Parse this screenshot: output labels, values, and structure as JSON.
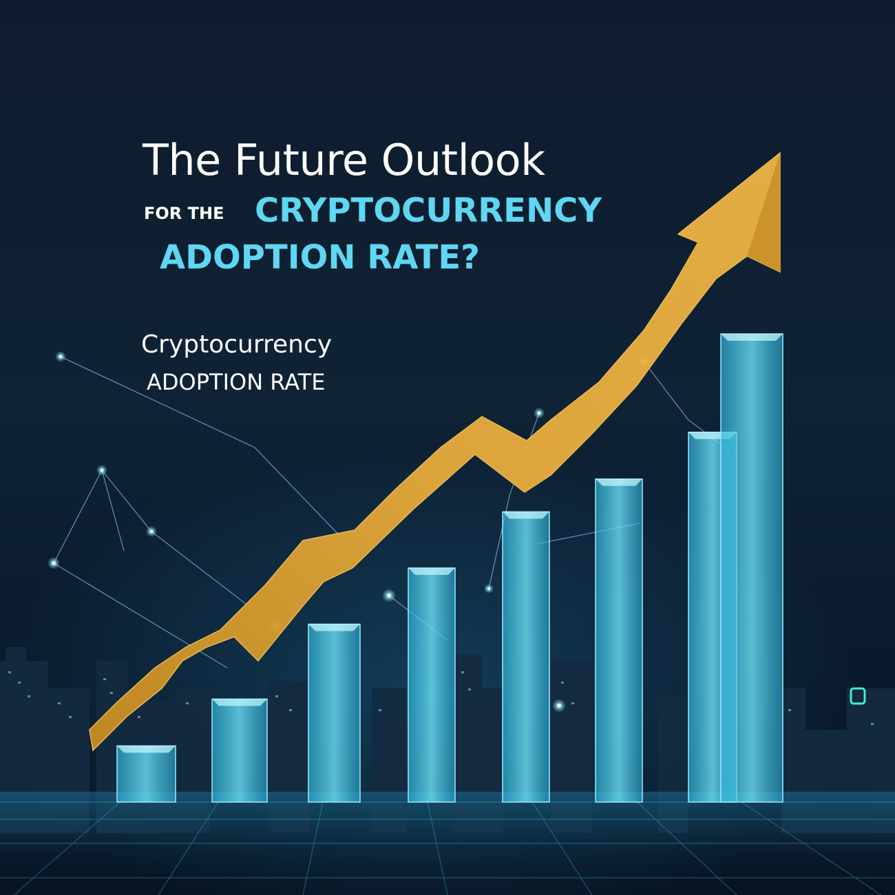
{
  "heading": {
    "line1": "The Future Outlook",
    "line2_prefix": "FOR THE",
    "line2_highlight": "CRYPTOCURRENCY",
    "line3_highlight": "ADOPTION RATE?"
  },
  "subheading": {
    "line1": "Cryptocurrency",
    "line2": "ADOPTION RATE"
  },
  "colors": {
    "background": "#0e1b2c",
    "highlight_text": "#5fd6f2",
    "arrow": "#e2a637",
    "bars": "#4fd3ee"
  },
  "illustration": {
    "bar_heights_relative": [
      0.12,
      0.22,
      0.38,
      0.5,
      0.62,
      0.69,
      0.79,
      1.0
    ],
    "trend_arrow_direction": "up",
    "background_scene": "city skyline at night"
  }
}
